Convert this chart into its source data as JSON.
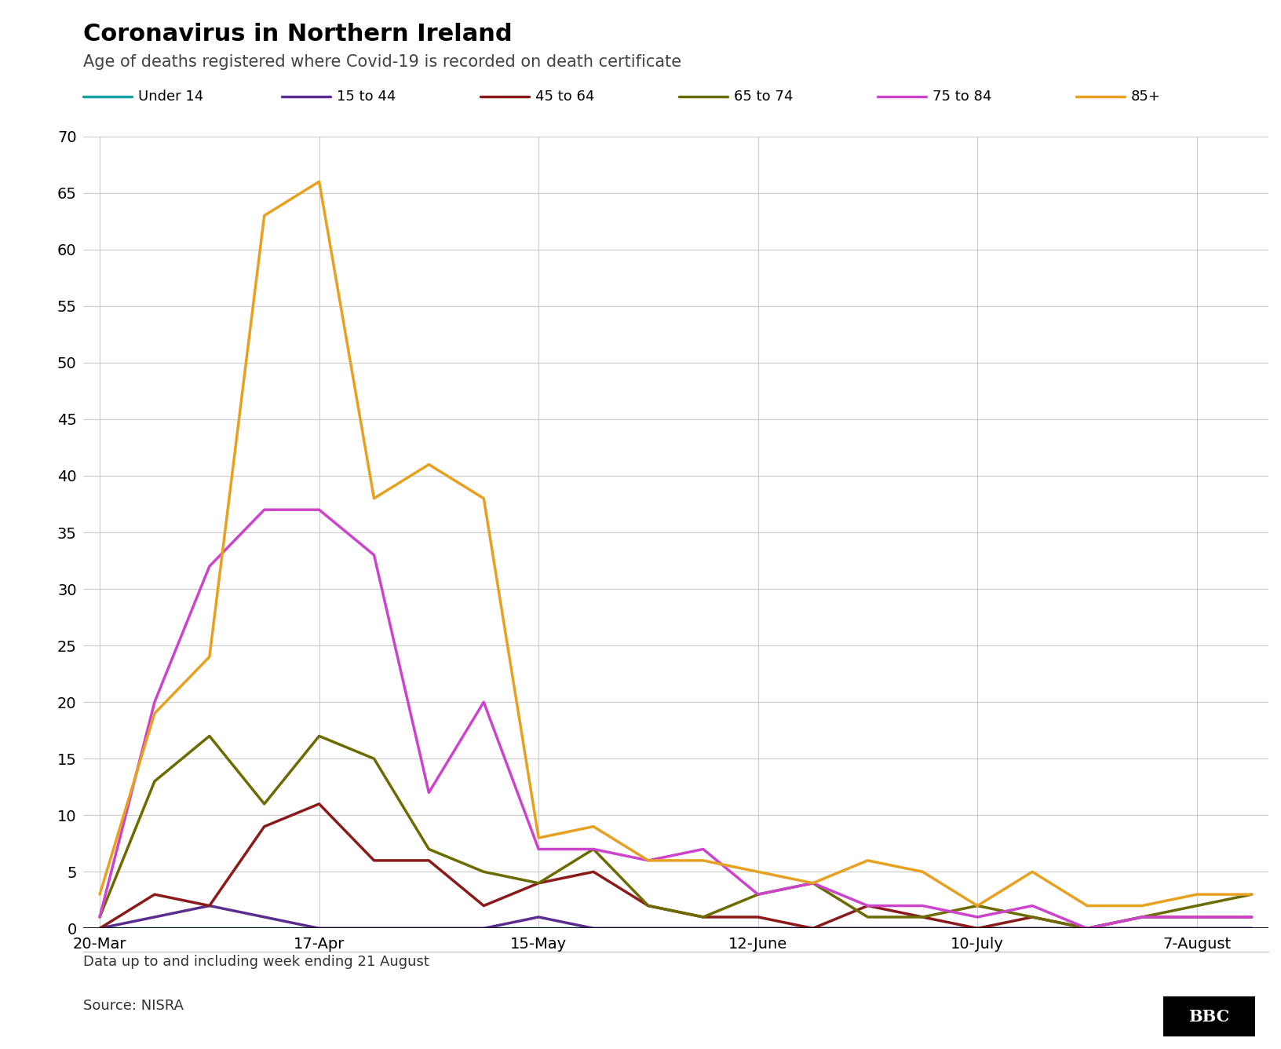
{
  "title": "Coronavirus in Northern Ireland",
  "subtitle": "Age of deaths registered where Covid-19 is recorded on death certificate",
  "footnote": "Data up to and including week ending 21 August",
  "source": "Source: NISRA",
  "x_labels": [
    "20-Mar",
    "17-Apr",
    "15-May",
    "12-June",
    "10-July",
    "7-August"
  ],
  "x_tick_positions": [
    0,
    4,
    8,
    12,
    16,
    20
  ],
  "n_points": 22,
  "series_names": [
    "Under 14",
    "15 to 44",
    "45 to 64",
    "65 to 74",
    "75 to 84",
    "85+"
  ],
  "series_colors": [
    "#1aa0a0",
    "#5b2d8e",
    "#8b1a1a",
    "#6b6b00",
    "#cc44cc",
    "#e8a020"
  ],
  "series_values": [
    [
      0,
      0,
      0,
      0,
      0,
      0,
      0,
      0,
      0,
      0,
      0,
      0,
      0,
      0,
      0,
      0,
      0,
      0,
      0,
      0,
      0,
      0
    ],
    [
      0,
      1,
      2,
      1,
      0,
      0,
      0,
      0,
      1,
      0,
      0,
      0,
      0,
      0,
      0,
      0,
      0,
      0,
      0,
      0,
      0,
      0
    ],
    [
      0,
      3,
      2,
      9,
      11,
      6,
      6,
      2,
      4,
      5,
      2,
      1,
      1,
      0,
      2,
      1,
      0,
      1,
      0,
      1,
      1,
      1
    ],
    [
      1,
      13,
      17,
      11,
      17,
      15,
      7,
      5,
      4,
      7,
      2,
      1,
      3,
      4,
      1,
      1,
      2,
      1,
      0,
      1,
      2,
      3
    ],
    [
      1,
      20,
      32,
      37,
      37,
      33,
      12,
      20,
      7,
      7,
      6,
      7,
      3,
      4,
      2,
      2,
      1,
      2,
      0,
      1,
      1,
      1
    ],
    [
      3,
      19,
      24,
      63,
      66,
      38,
      41,
      38,
      8,
      9,
      6,
      6,
      5,
      4,
      6,
      5,
      2,
      5,
      2,
      2,
      3,
      3
    ]
  ],
  "ylim": [
    0,
    70
  ],
  "yticks": [
    0,
    5,
    10,
    15,
    20,
    25,
    30,
    35,
    40,
    45,
    50,
    55,
    60,
    65,
    70
  ],
  "bg": "#ffffff",
  "grid_color": "#cccccc",
  "title_fs": 22,
  "subtitle_fs": 15,
  "axis_fs": 14,
  "legend_fs": 13,
  "line_width": 2.5
}
